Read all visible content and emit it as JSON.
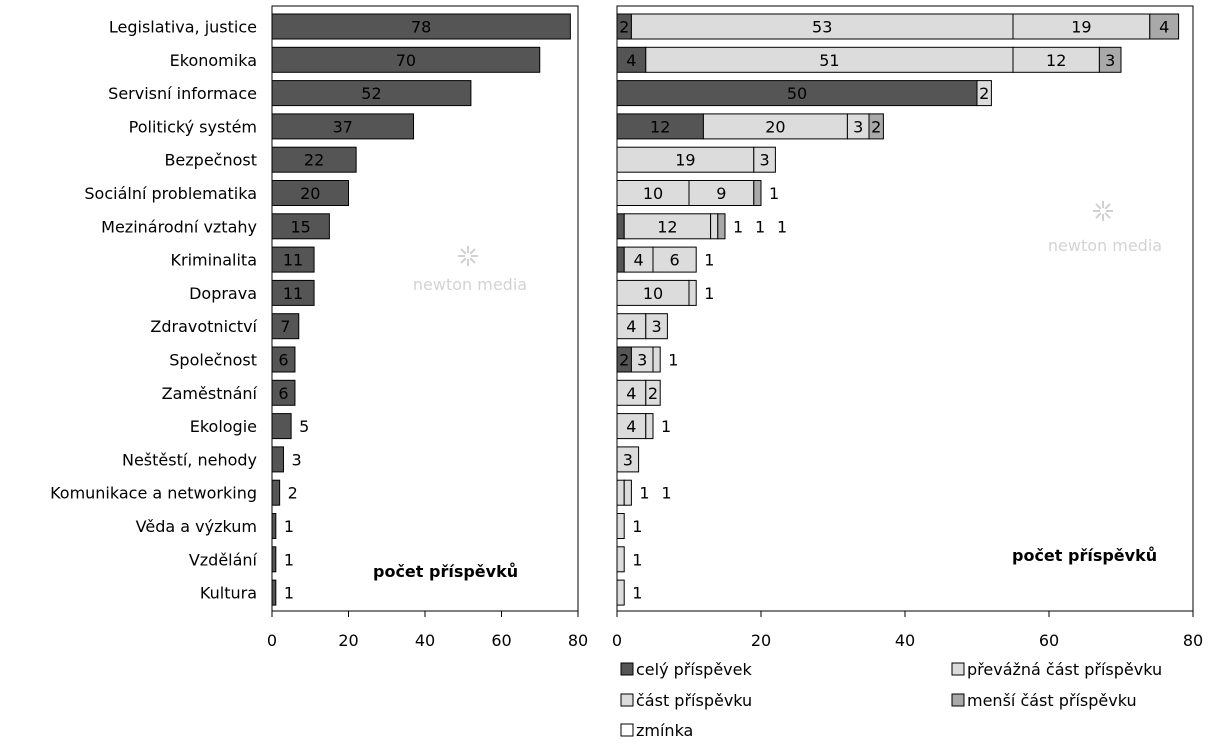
{
  "chart_data": [
    {
      "type": "bar",
      "orientation": "horizontal",
      "categories": [
        "Legislativa, justice",
        "Ekonomika",
        "Servisní informace",
        "Politický systém",
        "Bezpečnost",
        "Sociální problematika",
        "Mezinárodní vztahy",
        "Kriminalita",
        "Doprava",
        "Zdravotnictví",
        "Společnost",
        "Zaměstnání",
        "Ekologie",
        "Neštěstí, nehody",
        "Komunikace a networking",
        "Věda a výzkum",
        "Vzdělání",
        "Kultura"
      ],
      "values": [
        78,
        70,
        52,
        37,
        22,
        20,
        15,
        11,
        11,
        7,
        6,
        6,
        5,
        3,
        2,
        1,
        1,
        1
      ],
      "xlim": [
        0,
        80
      ],
      "xticks": [
        0,
        20,
        40,
        60,
        80
      ],
      "annotation": "počet příspěvků",
      "watermark": "newton media",
      "color": "#555555"
    },
    {
      "type": "bar",
      "orientation": "horizontal",
      "stacked": true,
      "categories": [
        "Legislativa, justice",
        "Ekonomika",
        "Servisní informace",
        "Politický systém",
        "Bezpečnost",
        "Sociální problematika",
        "Mezinárodní vztahy",
        "Kriminalita",
        "Doprava",
        "Zdravotnictví",
        "Společnost",
        "Zaměstnání",
        "Ekologie",
        "Neštěstí, nehody",
        "Komunikace a networking",
        "Věda a výzkum",
        "Vzdělání",
        "Kultura"
      ],
      "series": [
        {
          "name": "celý příspěvek",
          "color": "#555555",
          "values": [
            2,
            4,
            50,
            12,
            0,
            0,
            1,
            1,
            0,
            0,
            2,
            0,
            0,
            0,
            0,
            0,
            0,
            0
          ]
        },
        {
          "name": "převážná část příspěvku",
          "color": "#dcdcdc",
          "values": [
            53,
            51,
            2,
            20,
            19,
            10,
            12,
            4,
            10,
            4,
            3,
            4,
            4,
            3,
            1,
            1,
            1,
            1
          ]
        },
        {
          "name": "část příspěvku",
          "color": "#dcdcdc",
          "values": [
            19,
            12,
            0,
            3,
            3,
            9,
            1,
            6,
            1,
            3,
            1,
            2,
            1,
            0,
            1,
            0,
            0,
            0
          ]
        },
        {
          "name": "menší část příspěvku",
          "color": "#a9a9a9",
          "values": [
            4,
            3,
            0,
            2,
            0,
            1,
            1,
            0,
            0,
            0,
            0,
            0,
            0,
            0,
            0,
            0,
            0,
            0
          ]
        },
        {
          "name": "zmínka",
          "color": "#ffffff",
          "values": [
            0,
            0,
            0,
            0,
            0,
            0,
            0,
            0,
            0,
            0,
            0,
            0,
            0,
            0,
            0,
            0,
            0,
            0
          ]
        }
      ],
      "xlim": [
        0,
        80
      ],
      "xticks": [
        0,
        20,
        40,
        60,
        80
      ],
      "annotation": "počet příspěvků",
      "watermark": "newton media",
      "legend_position": "bottom"
    }
  ]
}
